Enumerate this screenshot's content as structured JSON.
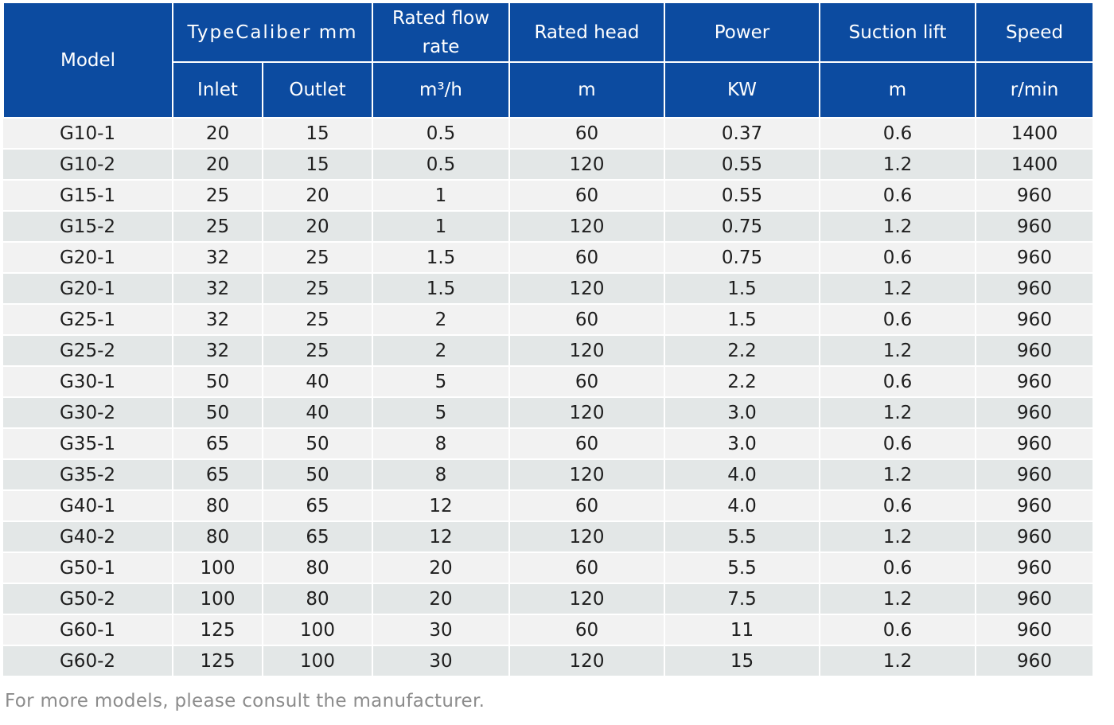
{
  "table": {
    "headers": {
      "model": "Model",
      "type_caliber": "TypeCaliber mm",
      "inlet": "Inlet",
      "outlet": "Outlet",
      "flow": "Rated flow rate",
      "flow_unit": "m³/h",
      "head": "Rated head",
      "head_unit": "m",
      "power": "Power",
      "power_unit": "KW",
      "suction": "Suction lift",
      "suction_unit": "m",
      "speed": "Speed",
      "speed_unit": "r/min"
    },
    "rows": [
      [
        "G10-1",
        "20",
        "15",
        "0.5",
        "60",
        "0.37",
        "0.6",
        "1400"
      ],
      [
        "G10-2",
        "20",
        "15",
        "0.5",
        "120",
        "0.55",
        "1.2",
        "1400"
      ],
      [
        "G15-1",
        "25",
        "20",
        "1",
        "60",
        "0.55",
        "0.6",
        "960"
      ],
      [
        "G15-2",
        "25",
        "20",
        "1",
        "120",
        "0.75",
        "1.2",
        "960"
      ],
      [
        "G20-1",
        "32",
        "25",
        "1.5",
        "60",
        "0.75",
        "0.6",
        "960"
      ],
      [
        "G20-1",
        "32",
        "25",
        "1.5",
        "120",
        "1.5",
        "1.2",
        "960"
      ],
      [
        "G25-1",
        "32",
        "25",
        "2",
        "60",
        "1.5",
        "0.6",
        "960"
      ],
      [
        "G25-2",
        "32",
        "25",
        "2",
        "120",
        "2.2",
        "1.2",
        "960"
      ],
      [
        "G30-1",
        "50",
        "40",
        "5",
        "60",
        "2.2",
        "0.6",
        "960"
      ],
      [
        "G30-2",
        "50",
        "40",
        "5",
        "120",
        "3.0",
        "1.2",
        "960"
      ],
      [
        "G35-1",
        "65",
        "50",
        "8",
        "60",
        "3.0",
        "0.6",
        "960"
      ],
      [
        "G35-2",
        "65",
        "50",
        "8",
        "120",
        "4.0",
        "1.2",
        "960"
      ],
      [
        "G40-1",
        "80",
        "65",
        "12",
        "60",
        "4.0",
        "0.6",
        "960"
      ],
      [
        "G40-2",
        "80",
        "65",
        "12",
        "120",
        "5.5",
        "1.2",
        "960"
      ],
      [
        "G50-1",
        "100",
        "80",
        "20",
        "60",
        "5.5",
        "0.6",
        "960"
      ],
      [
        "G50-2",
        "100",
        "80",
        "20",
        "120",
        "7.5",
        "1.2",
        "960"
      ],
      [
        "G60-1",
        "125",
        "100",
        "30",
        "60",
        "11",
        "0.6",
        "960"
      ],
      [
        "G60-2",
        "125",
        "100",
        "30",
        "120",
        "15",
        "1.2",
        "960"
      ]
    ]
  },
  "footnote": "For more models, please consult the manufacturer."
}
